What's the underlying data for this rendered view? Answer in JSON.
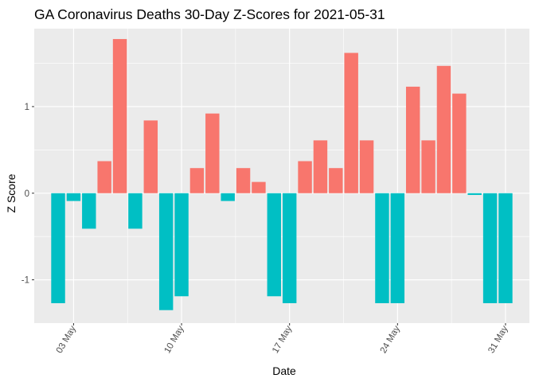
{
  "chart_data": {
    "type": "bar",
    "title": "GA Coronavirus Deaths 30-Day Z-Scores for 2021-05-31",
    "xlabel": "Date",
    "ylabel": "Z Score",
    "ylim": [
      -1.5,
      1.9
    ],
    "y_ticks": [
      -1,
      0,
      1
    ],
    "y_tick_labels": [
      "-1",
      "0",
      "1"
    ],
    "x_ticks": [
      {
        "day": 3,
        "label": "03 May"
      },
      {
        "day": 10,
        "label": "10 May"
      },
      {
        "day": 17,
        "label": "17 May"
      },
      {
        "day": 24,
        "label": "24 May"
      },
      {
        "day": 31,
        "label": "31 May"
      }
    ],
    "categories": [
      "2021-05-02",
      "2021-05-03",
      "2021-05-04",
      "2021-05-05",
      "2021-05-06",
      "2021-05-07",
      "2021-05-08",
      "2021-05-09",
      "2021-05-10",
      "2021-05-11",
      "2021-05-12",
      "2021-05-13",
      "2021-05-14",
      "2021-05-15",
      "2021-05-16",
      "2021-05-17",
      "2021-05-18",
      "2021-05-19",
      "2021-05-20",
      "2021-05-21",
      "2021-05-22",
      "2021-05-23",
      "2021-05-24",
      "2021-05-25",
      "2021-05-26",
      "2021-05-27",
      "2021-05-28",
      "2021-05-29",
      "2021-05-30",
      "2021-05-31"
    ],
    "days": [
      2,
      3,
      4,
      5,
      6,
      7,
      8,
      9,
      10,
      11,
      12,
      13,
      14,
      15,
      16,
      17,
      18,
      19,
      20,
      21,
      22,
      23,
      24,
      25,
      26,
      27,
      28,
      29,
      30,
      31
    ],
    "values": [
      -1.27,
      -0.09,
      -0.41,
      0.37,
      1.78,
      -0.41,
      0.84,
      -1.35,
      -1.19,
      0.29,
      0.92,
      -0.09,
      0.29,
      0.13,
      -1.19,
      -1.27,
      0.37,
      0.61,
      0.29,
      1.62,
      0.61,
      -1.27,
      -1.27,
      1.23,
      0.61,
      1.47,
      1.15,
      -0.02,
      -1.27,
      -1.27
    ],
    "colors": {
      "positive": "#F8766D",
      "negative": "#00BFC4",
      "panel": "#EBEBEB",
      "grid_major": "#FFFFFF",
      "text": "#4D4D4D"
    },
    "grid": true,
    "legend": "none"
  }
}
